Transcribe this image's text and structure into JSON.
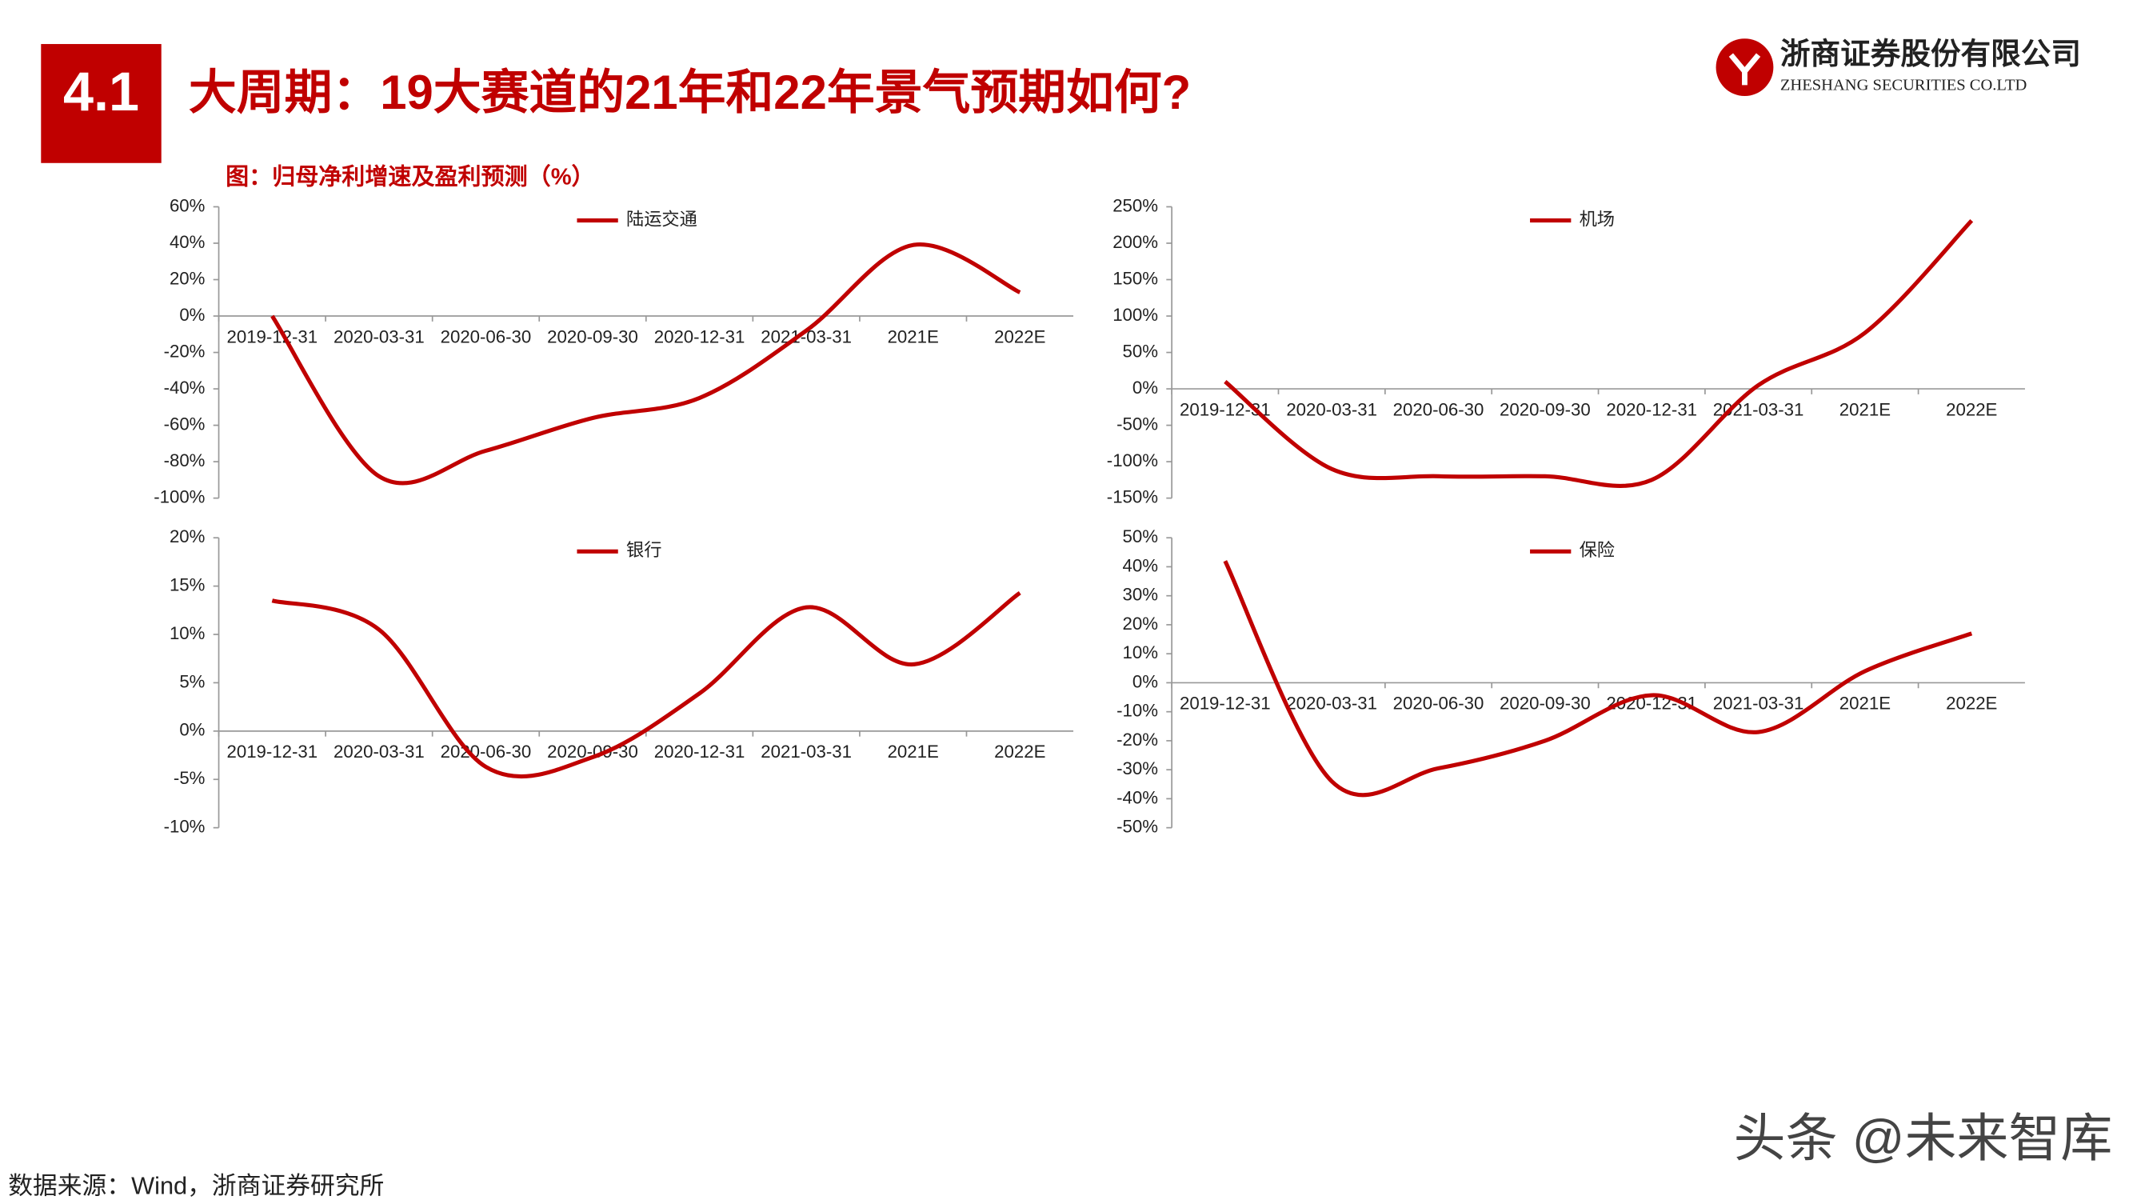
{
  "header": {
    "badge": "4.1",
    "title": "大周期：19大赛道的21年和22年景气预期如何?"
  },
  "logo": {
    "name": "浙商证券股份有限公司",
    "name_en": "ZHESHANG SECURITIES CO.LTD"
  },
  "figure_title": "图：归母净利增速及盈利预测（%）",
  "chart_data": [
    {
      "type": "line",
      "categories": [
        "2019-12-31",
        "2020-03-31",
        "2020-06-30",
        "2020-09-30",
        "2020-12-31",
        "2021-03-31",
        "2021E",
        "2022E"
      ],
      "series": [
        {
          "name": "陆运交通",
          "color": "#c00000",
          "values": [
            0,
            -88,
            -74,
            -56,
            -45,
            -8,
            39,
            13
          ]
        }
      ],
      "ylim": [
        -100,
        60
      ],
      "yticks": [
        {
          "value": -100,
          "label": "-100%"
        },
        {
          "value": -80,
          "label": "-80%"
        },
        {
          "value": -60,
          "label": "-60%"
        },
        {
          "value": -40,
          "label": "-40%"
        },
        {
          "value": -20,
          "label": "-20%"
        },
        {
          "value": 0,
          "label": "0%"
        },
        {
          "value": 20,
          "label": "20%"
        },
        {
          "value": 40,
          "label": "40%"
        },
        {
          "value": 60,
          "label": "60%"
        }
      ],
      "legend": "upper center"
    },
    {
      "type": "line",
      "categories": [
        "2019-12-31",
        "2020-03-31",
        "2020-06-30",
        "2020-09-30",
        "2020-12-31",
        "2021-03-31",
        "2021E",
        "2022E"
      ],
      "series": [
        {
          "name": "机场",
          "color": "#c00000",
          "values": [
            10,
            -110,
            -120,
            -120,
            -125,
            5,
            77,
            231
          ]
        }
      ],
      "ylim": [
        -150,
        250
      ],
      "yticks": [
        {
          "value": -150,
          "label": "-150%"
        },
        {
          "value": -100,
          "label": "-100%"
        },
        {
          "value": -50,
          "label": "-50%"
        },
        {
          "value": 0,
          "label": "0%"
        },
        {
          "value": 50,
          "label": "50%"
        },
        {
          "value": 100,
          "label": "100%"
        },
        {
          "value": 150,
          "label": "150%"
        },
        {
          "value": 200,
          "label": "200%"
        },
        {
          "value": 250,
          "label": "250%"
        }
      ],
      "legend": "upper center"
    },
    {
      "type": "line",
      "categories": [
        "2019-12-31",
        "2020-03-31",
        "2020-06-30",
        "2020-09-30",
        "2020-12-31",
        "2021-03-31",
        "2021E",
        "2022E"
      ],
      "series": [
        {
          "name": "银行",
          "color": "#c00000",
          "values": [
            13.5,
            10.5,
            -3.7,
            -2.7,
            3.9,
            12.8,
            6.9,
            14.3
          ]
        }
      ],
      "ylim": [
        -10,
        20
      ],
      "yticks": [
        {
          "value": -10,
          "label": "-10%"
        },
        {
          "value": -5,
          "label": "-5%"
        },
        {
          "value": 0,
          "label": "0%"
        },
        {
          "value": 5,
          "label": "5%"
        },
        {
          "value": 10,
          "label": "10%"
        },
        {
          "value": 15,
          "label": "15%"
        },
        {
          "value": 20,
          "label": "20%"
        }
      ],
      "legend": "upper center"
    },
    {
      "type": "line",
      "categories": [
        "2019-12-31",
        "2020-03-31",
        "2020-06-30",
        "2020-09-30",
        "2020-12-31",
        "2021-03-31",
        "2021E",
        "2022E"
      ],
      "series": [
        {
          "name": "保险",
          "color": "#c00000",
          "values": [
            42,
            -34,
            -29.5,
            -20,
            -4.3,
            -17,
            4,
            17
          ]
        }
      ],
      "ylim": [
        -50,
        50
      ],
      "yticks": [
        {
          "value": -50,
          "label": "-50%"
        },
        {
          "value": -40,
          "label": "-40%"
        },
        {
          "value": -30,
          "label": "-30%"
        },
        {
          "value": -20,
          "label": "-20%"
        },
        {
          "value": -10,
          "label": "-10%"
        },
        {
          "value": 0,
          "label": "0%"
        },
        {
          "value": 10,
          "label": "10%"
        },
        {
          "value": 20,
          "label": "20%"
        },
        {
          "value": 30,
          "label": "30%"
        },
        {
          "value": 40,
          "label": "40%"
        },
        {
          "value": 50,
          "label": "50%"
        }
      ],
      "legend": "upper center"
    }
  ],
  "source": "数据来源：Wind，浙商证券研究所",
  "watermark": "头条 @未来智库"
}
